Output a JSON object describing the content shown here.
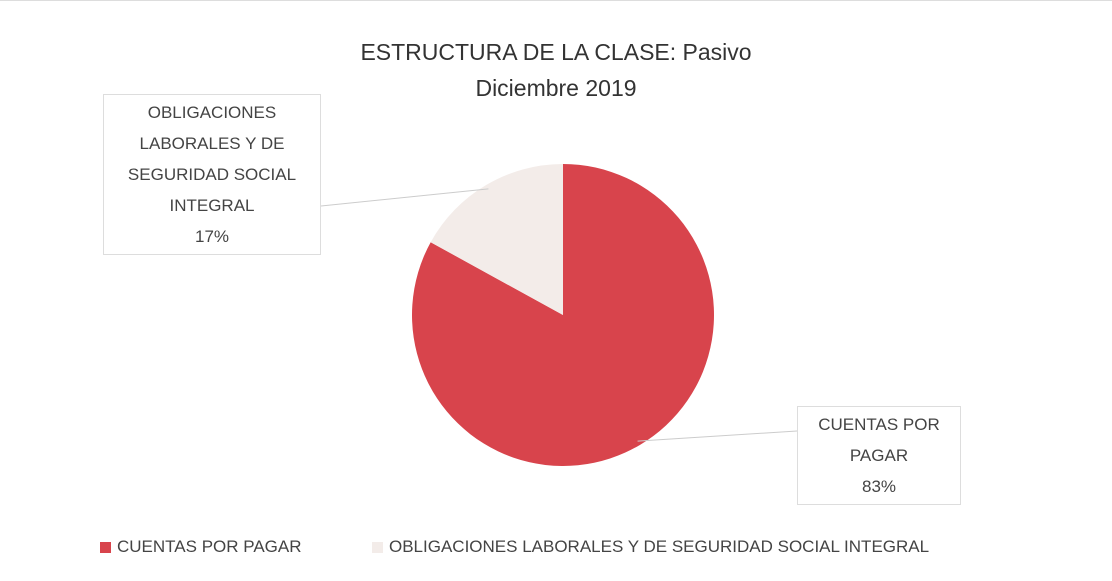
{
  "chart_data": {
    "type": "pie",
    "title": "ESTRUCTURA DE LA CLASE: Pasivo",
    "subtitle": "Diciembre 2019",
    "categories": [
      "CUENTAS POR PAGAR",
      "OBLIGACIONES LABORALES Y DE SEGURIDAD SOCIAL INTEGRAL"
    ],
    "values": [
      83,
      17
    ],
    "value_labels": [
      "83%",
      "17%"
    ],
    "colors": [
      "#d8444c",
      "#f3ece9"
    ],
    "legend": "bottom"
  }
}
